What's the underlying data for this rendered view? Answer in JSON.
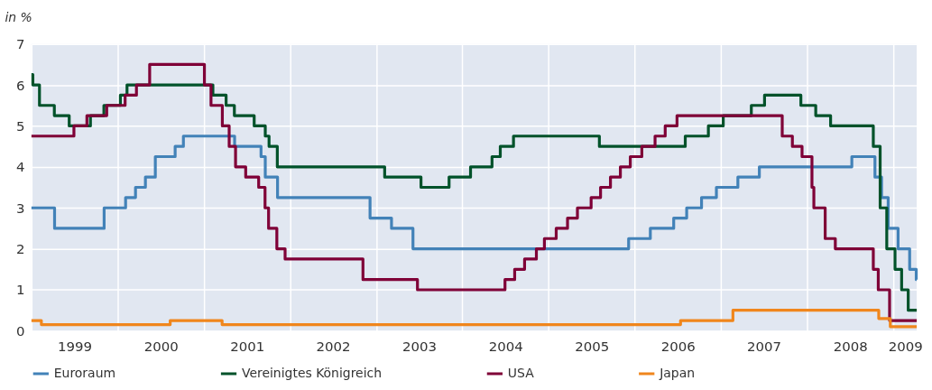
{
  "chart_data": {
    "type": "step",
    "ylabel": "in %",
    "xlim": [
      "1999-01-01",
      "2009-04-10"
    ],
    "xticks": [
      {
        "value": "1999-01-01",
        "label": null
      },
      {
        "value": "1999-07-02",
        "label": "1999"
      },
      {
        "value": "2000-01-01",
        "label": null
      },
      {
        "value": "2000-07-02",
        "label": "2000"
      },
      {
        "value": "2001-01-01",
        "label": null
      },
      {
        "value": "2001-07-02",
        "label": "2001"
      },
      {
        "value": "2002-01-01",
        "label": null
      },
      {
        "value": "2002-07-02",
        "label": "2002"
      },
      {
        "value": "2003-01-01",
        "label": null
      },
      {
        "value": "2003-07-02",
        "label": "2003"
      },
      {
        "value": "2004-01-01",
        "label": null
      },
      {
        "value": "2004-07-02",
        "label": "2004"
      },
      {
        "value": "2005-01-01",
        "label": null
      },
      {
        "value": "2005-07-02",
        "label": "2005"
      },
      {
        "value": "2006-01-01",
        "label": null
      },
      {
        "value": "2006-07-02",
        "label": "2006"
      },
      {
        "value": "2007-01-01",
        "label": null
      },
      {
        "value": "2007-07-02",
        "label": "2007"
      },
      {
        "value": "2008-01-01",
        "label": null
      },
      {
        "value": "2008-07-02",
        "label": "2008"
      },
      {
        "value": "2009-01-01",
        "label": null
      },
      {
        "value": "2009-02-20",
        "label": "2009"
      }
    ],
    "ylim": [
      0,
      7
    ],
    "yticks": [
      0,
      1,
      2,
      3,
      4,
      5,
      6,
      7
    ],
    "grid": true,
    "legend": "bottom",
    "line_style": "solid",
    "series": [
      {
        "name": "Euroraum",
        "color": "#4282b8",
        "x": [
          "1999-01-01",
          "1999-04-09",
          "1999-11-05",
          "2000-02-04",
          "2000-03-17",
          "2000-04-28",
          "2000-06-09",
          "2000-09-01",
          "2000-10-06",
          "2001-05-11",
          "2001-08-31",
          "2001-09-18",
          "2001-11-09",
          "2002-12-06",
          "2003-03-07",
          "2003-06-06",
          "2005-12-06",
          "2006-03-08",
          "2006-06-15",
          "2006-08-09",
          "2006-10-11",
          "2006-12-13",
          "2007-03-14",
          "2007-06-13",
          "2008-07-09",
          "2008-10-15",
          "2008-11-12",
          "2008-12-10",
          "2009-01-21",
          "2009-03-11",
          "2009-04-08",
          "2009-04-10"
        ],
        "values": [
          3.0,
          2.5,
          3.0,
          3.25,
          3.5,
          3.75,
          4.25,
          4.5,
          4.75,
          4.5,
          4.25,
          3.75,
          3.25,
          2.75,
          2.5,
          2.0,
          2.25,
          2.5,
          2.75,
          3.0,
          3.25,
          3.5,
          3.75,
          4.0,
          4.25,
          3.75,
          3.25,
          2.5,
          2.0,
          1.5,
          1.25,
          1.25
        ]
      },
      {
        "name": "Vereinigtes Königreich",
        "color": "#00522a",
        "x": [
          "1999-01-01",
          "1999-01-07",
          "1999-02-04",
          "1999-04-08",
          "1999-06-10",
          "1999-09-08",
          "1999-11-04",
          "2000-01-13",
          "2000-02-10",
          "2001-02-08",
          "2001-04-05",
          "2001-05-10",
          "2001-08-02",
          "2001-09-18",
          "2001-10-04",
          "2001-11-08",
          "2003-02-06",
          "2003-07-10",
          "2003-11-06",
          "2004-02-05",
          "2004-05-06",
          "2004-06-10",
          "2004-08-05",
          "2005-08-04",
          "2006-08-03",
          "2006-11-09",
          "2007-01-11",
          "2007-05-10",
          "2007-07-05",
          "2007-12-06",
          "2008-02-07",
          "2008-04-10",
          "2008-10-08",
          "2008-11-06",
          "2008-12-04",
          "2009-01-08",
          "2009-02-05",
          "2009-03-05",
          "2009-04-10"
        ],
        "values": [
          6.25,
          6.0,
          5.5,
          5.25,
          5.0,
          5.25,
          5.5,
          5.75,
          6.0,
          5.75,
          5.5,
          5.25,
          5.0,
          4.75,
          4.5,
          4.0,
          3.75,
          3.5,
          3.75,
          4.0,
          4.25,
          4.5,
          4.75,
          4.5,
          4.75,
          5.0,
          5.25,
          5.5,
          5.75,
          5.5,
          5.25,
          5.0,
          4.5,
          3.0,
          2.0,
          1.5,
          1.0,
          0.5,
          0.5
        ]
      },
      {
        "name": "USA",
        "color": "#7f0037",
        "x": [
          "1999-01-01",
          "1999-06-30",
          "1999-08-24",
          "1999-11-16",
          "2000-02-02",
          "2000-03-21",
          "2000-05-16",
          "2001-01-03",
          "2001-01-31",
          "2001-03-20",
          "2001-04-18",
          "2001-05-15",
          "2001-06-27",
          "2001-08-21",
          "2001-09-17",
          "2001-10-02",
          "2001-11-06",
          "2001-12-11",
          "2002-11-06",
          "2003-06-25",
          "2004-06-30",
          "2004-08-10",
          "2004-09-21",
          "2004-11-10",
          "2004-12-14",
          "2005-02-02",
          "2005-03-22",
          "2005-05-03",
          "2005-06-30",
          "2005-08-09",
          "2005-09-20",
          "2005-11-01",
          "2005-12-13",
          "2006-01-31",
          "2006-03-28",
          "2006-05-10",
          "2006-06-29",
          "2007-09-18",
          "2007-10-31",
          "2007-12-11",
          "2008-01-22",
          "2008-01-30",
          "2008-03-18",
          "2008-04-30",
          "2008-10-08",
          "2008-10-29",
          "2008-12-16",
          "2009-04-10"
        ],
        "values": [
          4.75,
          5.0,
          5.25,
          5.5,
          5.75,
          6.0,
          6.5,
          6.0,
          5.5,
          5.0,
          4.5,
          4.0,
          3.75,
          3.5,
          3.0,
          2.5,
          2.0,
          1.75,
          1.25,
          1.0,
          1.25,
          1.5,
          1.75,
          2.0,
          2.25,
          2.5,
          2.75,
          3.0,
          3.25,
          3.5,
          3.75,
          4.0,
          4.25,
          4.5,
          4.75,
          5.0,
          5.25,
          4.75,
          4.5,
          4.25,
          3.5,
          3.0,
          2.25,
          2.0,
          1.5,
          1.0,
          0.25,
          0.25
        ]
      },
      {
        "name": "Japan",
        "color": "#f0861c",
        "x": [
          "1999-01-01",
          "1999-02-12",
          "2000-08-11",
          "2001-03-19",
          "2006-07-14",
          "2007-02-21",
          "2008-10-31",
          "2008-12-19",
          "2009-04-10"
        ],
        "values": [
          0.25,
          0.15,
          0.25,
          0.15,
          0.25,
          0.5,
          0.3,
          0.1,
          0.1
        ]
      }
    ]
  }
}
